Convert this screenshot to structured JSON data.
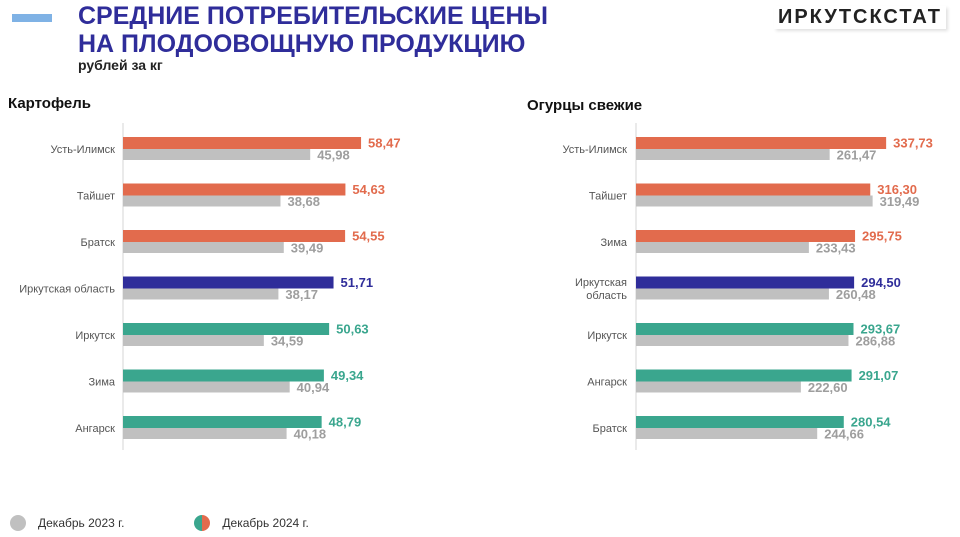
{
  "header": {
    "title_line1": "СРЕДНИЕ ПОТРЕБИТЕЛЬСКИЕ ЦЕНЫ",
    "title_line2": "НА ПЛОДООВОЩНУЮ ПРОДУКЦИЮ",
    "subtitle": "рублей за кг",
    "brand": "ИРКУТСКСТАТ"
  },
  "legend": {
    "dec2023": "Декабрь 2023 г.",
    "dec2024": "Декабрь 2024 г."
  },
  "colors": {
    "orange": "#e26b4d",
    "navy": "#2f2d9a",
    "teal": "#3aa68e",
    "gray": "#c0c0c0",
    "gray_label": "#9e9e9e"
  },
  "chart_data": [
    {
      "type": "bar",
      "orientation": "horizontal",
      "title": "Картофель",
      "categories": [
        "Усть-Илимск",
        "Тайшет",
        "Братск",
        "Иркутская область",
        "Иркутск",
        "Зима",
        "Ангарск"
      ],
      "labels": [
        "Усть-Илимск",
        "Тайшет",
        "Братск",
        "Иркутская область",
        "Иркутск",
        "Зима",
        "Ангарск"
      ],
      "series": [
        {
          "name": "Декабрь 2024 г.",
          "values": [
            58.47,
            54.63,
            54.55,
            51.71,
            50.63,
            49.34,
            48.79
          ],
          "labels": [
            "58,47",
            "54,63",
            "54,55",
            "51,71",
            "50,63",
            "49,34",
            "48,79"
          ],
          "colors": [
            "#e26b4d",
            "#e26b4d",
            "#e26b4d",
            "#2f2d9a",
            "#3aa68e",
            "#3aa68e",
            "#3aa68e"
          ]
        },
        {
          "name": "Декабрь 2023 г.",
          "values": [
            45.98,
            38.68,
            39.49,
            38.17,
            34.59,
            40.94,
            40.18
          ],
          "labels": [
            "45,98",
            "38,68",
            "39,49",
            "38,17",
            "34,59",
            "40,94",
            "40,18"
          ]
        }
      ],
      "xlim": [
        0,
        70
      ]
    },
    {
      "type": "bar",
      "orientation": "horizontal",
      "title": "Огурцы свежие",
      "categories": [
        "Усть-Илимск",
        "Тайшет",
        "Зима",
        "Иркутская область",
        "Иркутск",
        "Ангарск",
        "Братск"
      ],
      "labels": [
        "Усть-Илимск",
        "Тайшет",
        "Зима",
        "Иркутская|область",
        "Иркутск",
        "Ангарск",
        "Братск"
      ],
      "series": [
        {
          "name": "Декабрь 2024 г.",
          "values": [
            337.73,
            316.3,
            295.75,
            294.5,
            293.67,
            291.07,
            280.54
          ],
          "labels": [
            "337,73",
            "316,30",
            "295,75",
            "294,50",
            "293,67",
            "291,07",
            "280,54"
          ],
          "colors": [
            "#e26b4d",
            "#e26b4d",
            "#e26b4d",
            "#2f2d9a",
            "#3aa68e",
            "#3aa68e",
            "#3aa68e"
          ]
        },
        {
          "name": "Декабрь 2023 г.",
          "values": [
            261.47,
            319.49,
            233.43,
            260.48,
            286.88,
            222.6,
            244.66
          ],
          "labels": [
            "261,47",
            "319,49",
            "233,43",
            "260,48",
            "286,88",
            "222,60",
            "244,66"
          ]
        }
      ],
      "xlim": [
        0,
        374
      ]
    }
  ]
}
